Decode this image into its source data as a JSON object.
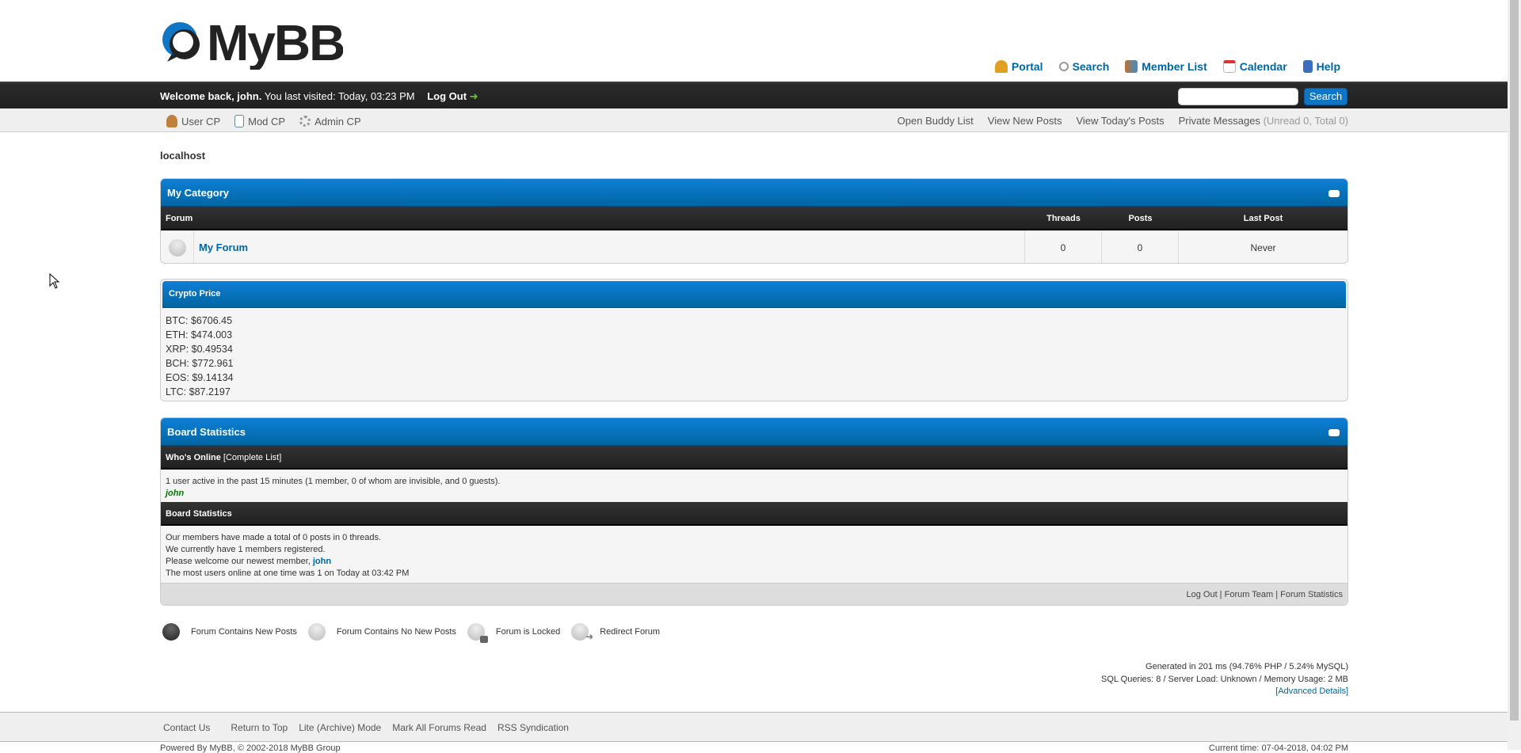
{
  "header": {
    "logo_text": "MyBB",
    "top_links": [
      {
        "label": "Portal",
        "icon": "bell-icon"
      },
      {
        "label": "Search",
        "icon": "magnifier-icon"
      },
      {
        "label": "Member List",
        "icon": "members-icon"
      },
      {
        "label": "Calendar",
        "icon": "calendar-icon"
      },
      {
        "label": "Help",
        "icon": "help-book-icon"
      }
    ]
  },
  "panel": {
    "welcome": "Welcome back, john.",
    "last_visit": "You last visited: Today, 03:23 PM",
    "logout": "Log Out",
    "search_placeholder": "",
    "search_button": "Search"
  },
  "subnav": {
    "left": [
      {
        "label": "User CP",
        "icon": "user-cp-icon"
      },
      {
        "label": "Mod CP",
        "icon": "notepad-icon"
      },
      {
        "label": "Admin CP",
        "icon": "gear-icon"
      }
    ],
    "right": [
      "Open Buddy List",
      "View New Posts",
      "View Today's Posts"
    ],
    "pm_label": "Private Messages",
    "pm_counts": "(Unread 0, Total 0)"
  },
  "board_name": "localhost",
  "category": {
    "title": "My Category",
    "columns": [
      "Forum",
      "Threads",
      "Posts",
      "Last Post"
    ],
    "forums": [
      {
        "name": "My Forum",
        "threads": "0",
        "posts": "0",
        "last_post": "Never"
      }
    ]
  },
  "crypto": {
    "title": "Crypto Price",
    "prices": [
      "BTC: $6706.45",
      "ETH: $474.003",
      "XRP: $0.49534",
      "BCH: $772.961",
      "EOS: $9.14134",
      "LTC: $87.2197"
    ]
  },
  "stats": {
    "title": "Board Statistics",
    "whos_online": "Who's Online",
    "complete_list": "[Complete List]",
    "online_text": "1 user active in the past 15 minutes (1 member, 0 of whom are invisible, and 0 guests).",
    "online_user": "john",
    "stats_heading": "Board Statistics",
    "line1": "Our members have made a total of 0 posts in 0 threads.",
    "line2": "We currently have 1 members registered.",
    "line3": "Please welcome our newest member, ",
    "newest": "john",
    "line4": "The most users online at one time was 1 on Today at 03:42 PM",
    "footer_links": [
      "Log Out",
      "Forum Team",
      "Forum Statistics"
    ]
  },
  "legend": [
    "Forum Contains New Posts",
    "Forum Contains No New Posts",
    "Forum is Locked",
    "Redirect Forum"
  ],
  "debug": {
    "line1": "Generated in 201 ms (94.76% PHP / 5.24% MySQL)",
    "line2": "SQL Queries: 8 / Server Load: Unknown / Memory Usage: 2 MB",
    "advanced": "[Advanced Details]"
  },
  "footer": {
    "links": [
      "Contact Us",
      "Return to Top",
      "Lite (Archive) Mode",
      "Mark All Forums Read",
      "RSS Syndication"
    ],
    "powered": "Powered By MyBB, © 2002-2018 MyBB Group",
    "current_time": "Current time: 07-04-2018, 04:02 PM"
  },
  "colors": {
    "accent": "#0066a2",
    "bar": "#202020",
    "online_user": "#007700"
  }
}
